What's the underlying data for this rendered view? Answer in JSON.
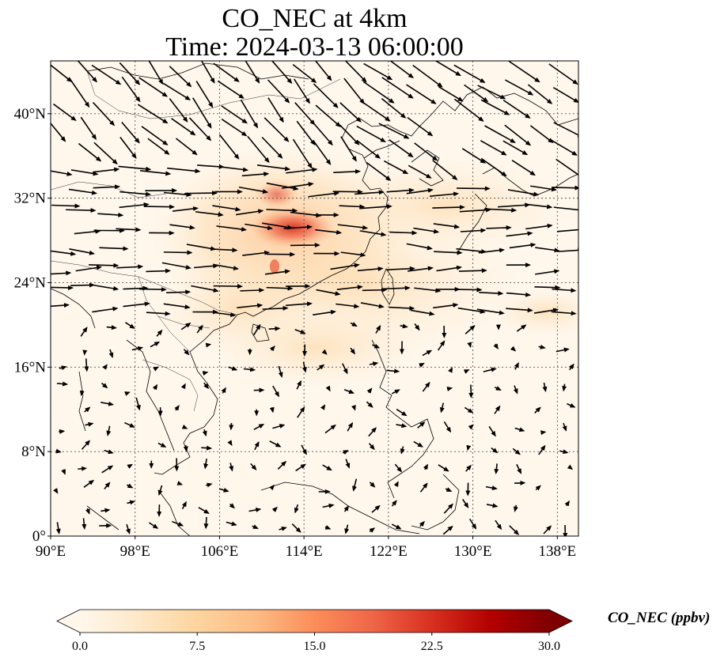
{
  "title": {
    "line1": "CO_NEC at 4km",
    "line2": "Time: 2024-03-13 06:00:00"
  },
  "map": {
    "lon_range": [
      90,
      140
    ],
    "lat_range": [
      0,
      45
    ],
    "x_ticks": [
      "90°E",
      "98°E",
      "106°E",
      "114°E",
      "122°E",
      "130°E",
      "138°E"
    ],
    "x_tick_values": [
      90,
      98,
      106,
      114,
      122,
      130,
      138
    ],
    "y_ticks": [
      "0°",
      "8°N",
      "16°N",
      "24°N",
      "32°N",
      "40°N"
    ],
    "y_tick_values": [
      0,
      8,
      16,
      24,
      32,
      40
    ],
    "gridlines": true,
    "features": [
      "coastlines",
      "country borders",
      "wind vectors"
    ],
    "colormap": "OrRd",
    "plume_peak_location": [
      112.5,
      29.5
    ]
  },
  "colorbar": {
    "label": "CO_NEC (ppbv)",
    "ticks": [
      "0.0",
      "7.5",
      "15.0",
      "22.5",
      "30.0"
    ],
    "tick_values": [
      0,
      7.5,
      15,
      22.5,
      30
    ],
    "min": 0,
    "max": 30,
    "extend": "both",
    "colors": [
      "#fff7ec",
      "#fee8c8",
      "#fdd49e",
      "#fdbb84",
      "#fc8d59",
      "#ef6548",
      "#d7301f",
      "#b30000",
      "#7f0000"
    ]
  }
}
